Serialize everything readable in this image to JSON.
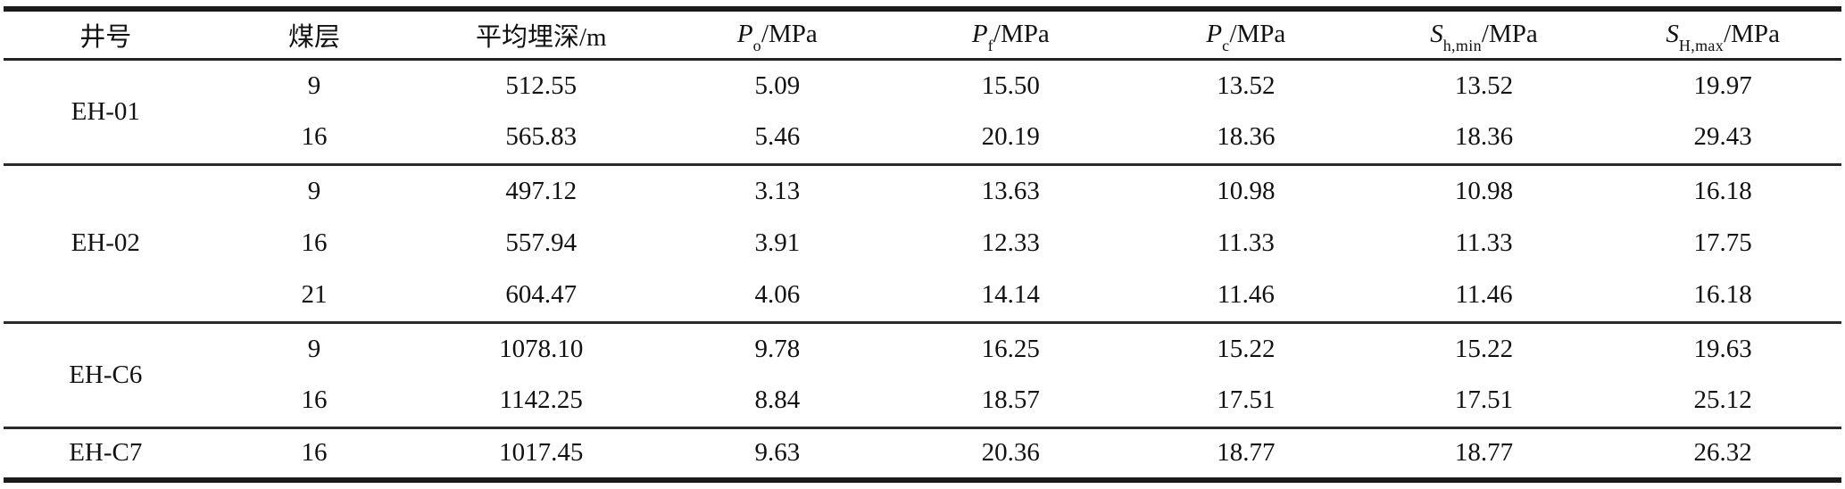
{
  "table": {
    "columns": [
      {
        "base": "井号",
        "sub": "",
        "rest": ""
      },
      {
        "base": "煤层",
        "sub": "",
        "rest": ""
      },
      {
        "base": "平均埋深/m",
        "sub": "",
        "rest": ""
      },
      {
        "base": "P",
        "sub": "o",
        "rest": "/MPa"
      },
      {
        "base": "P",
        "sub": "f",
        "rest": "/MPa"
      },
      {
        "base": "P",
        "sub": "c",
        "rest": "/MPa"
      },
      {
        "base": "S",
        "sub": "h,min",
        "rest": "/MPa"
      },
      {
        "base": "S",
        "sub": "H,max",
        "rest": "/MPa"
      }
    ],
    "groups": [
      {
        "well": "EH-01",
        "rows": [
          {
            "seam": "9",
            "depth": "512.55",
            "po": "5.09",
            "pf": "15.50",
            "pc": "13.52",
            "shmin": "13.52",
            "shmax": "19.97"
          },
          {
            "seam": "16",
            "depth": "565.83",
            "po": "5.46",
            "pf": "20.19",
            "pc": "18.36",
            "shmin": "18.36",
            "shmax": "29.43"
          }
        ]
      },
      {
        "well": "EH-02",
        "rows": [
          {
            "seam": "9",
            "depth": "497.12",
            "po": "3.13",
            "pf": "13.63",
            "pc": "10.98",
            "shmin": "10.98",
            "shmax": "16.18"
          },
          {
            "seam": "16",
            "depth": "557.94",
            "po": "3.91",
            "pf": "12.33",
            "pc": "11.33",
            "shmin": "11.33",
            "shmax": "17.75"
          },
          {
            "seam": "21",
            "depth": "604.47",
            "po": "4.06",
            "pf": "14.14",
            "pc": "11.46",
            "shmin": "11.46",
            "shmax": "16.18"
          }
        ]
      },
      {
        "well": "EH-C6",
        "rows": [
          {
            "seam": "9",
            "depth": "1078.10",
            "po": "9.78",
            "pf": "16.25",
            "pc": "15.22",
            "shmin": "15.22",
            "shmax": "19.63"
          },
          {
            "seam": "16",
            "depth": "1142.25",
            "po": "8.84",
            "pf": "18.57",
            "pc": "17.51",
            "shmin": "17.51",
            "shmax": "25.12"
          }
        ]
      },
      {
        "well": "EH-C7",
        "rows": [
          {
            "seam": "16",
            "depth": "1017.45",
            "po": "9.63",
            "pf": "20.36",
            "pc": "18.77",
            "shmin": "18.77",
            "shmax": "26.32"
          }
        ]
      }
    ]
  }
}
